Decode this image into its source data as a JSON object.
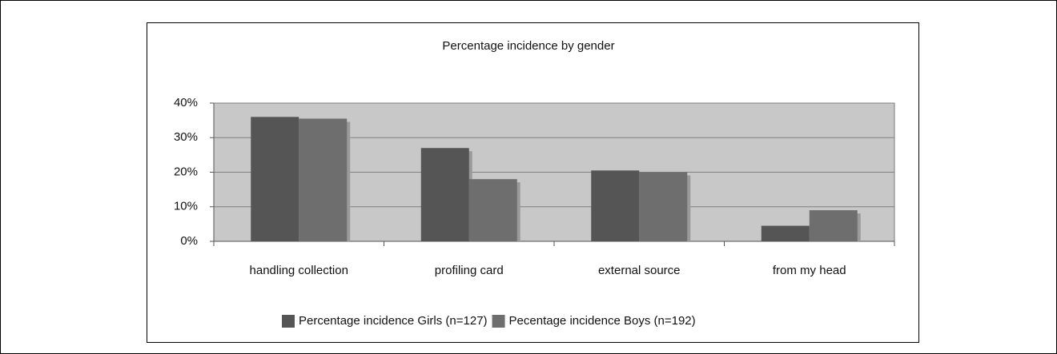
{
  "chart_data": {
    "type": "bar",
    "title": "Percentage incidence by gender",
    "categories": [
      "handling collection",
      "profiling card",
      "external source",
      "from my head"
    ],
    "series": [
      {
        "name": "Percentage incidence Girls (n=127)",
        "color": "#555555",
        "values": [
          36,
          27,
          20.5,
          4.5
        ]
      },
      {
        "name": "Pecentage incidence Boys (n=192)",
        "color": "#6e6e6e",
        "values": [
          35.5,
          18,
          20,
          9
        ]
      }
    ],
    "ylim": [
      0,
      40
    ],
    "yticks": [
      {
        "value": 0,
        "label": "0%"
      },
      {
        "value": 10,
        "label": "10%"
      },
      {
        "value": 20,
        "label": "20%"
      },
      {
        "value": 30,
        "label": "30%"
      },
      {
        "value": 40,
        "label": "40%"
      }
    ],
    "grid": true,
    "legend": "bottom"
  }
}
